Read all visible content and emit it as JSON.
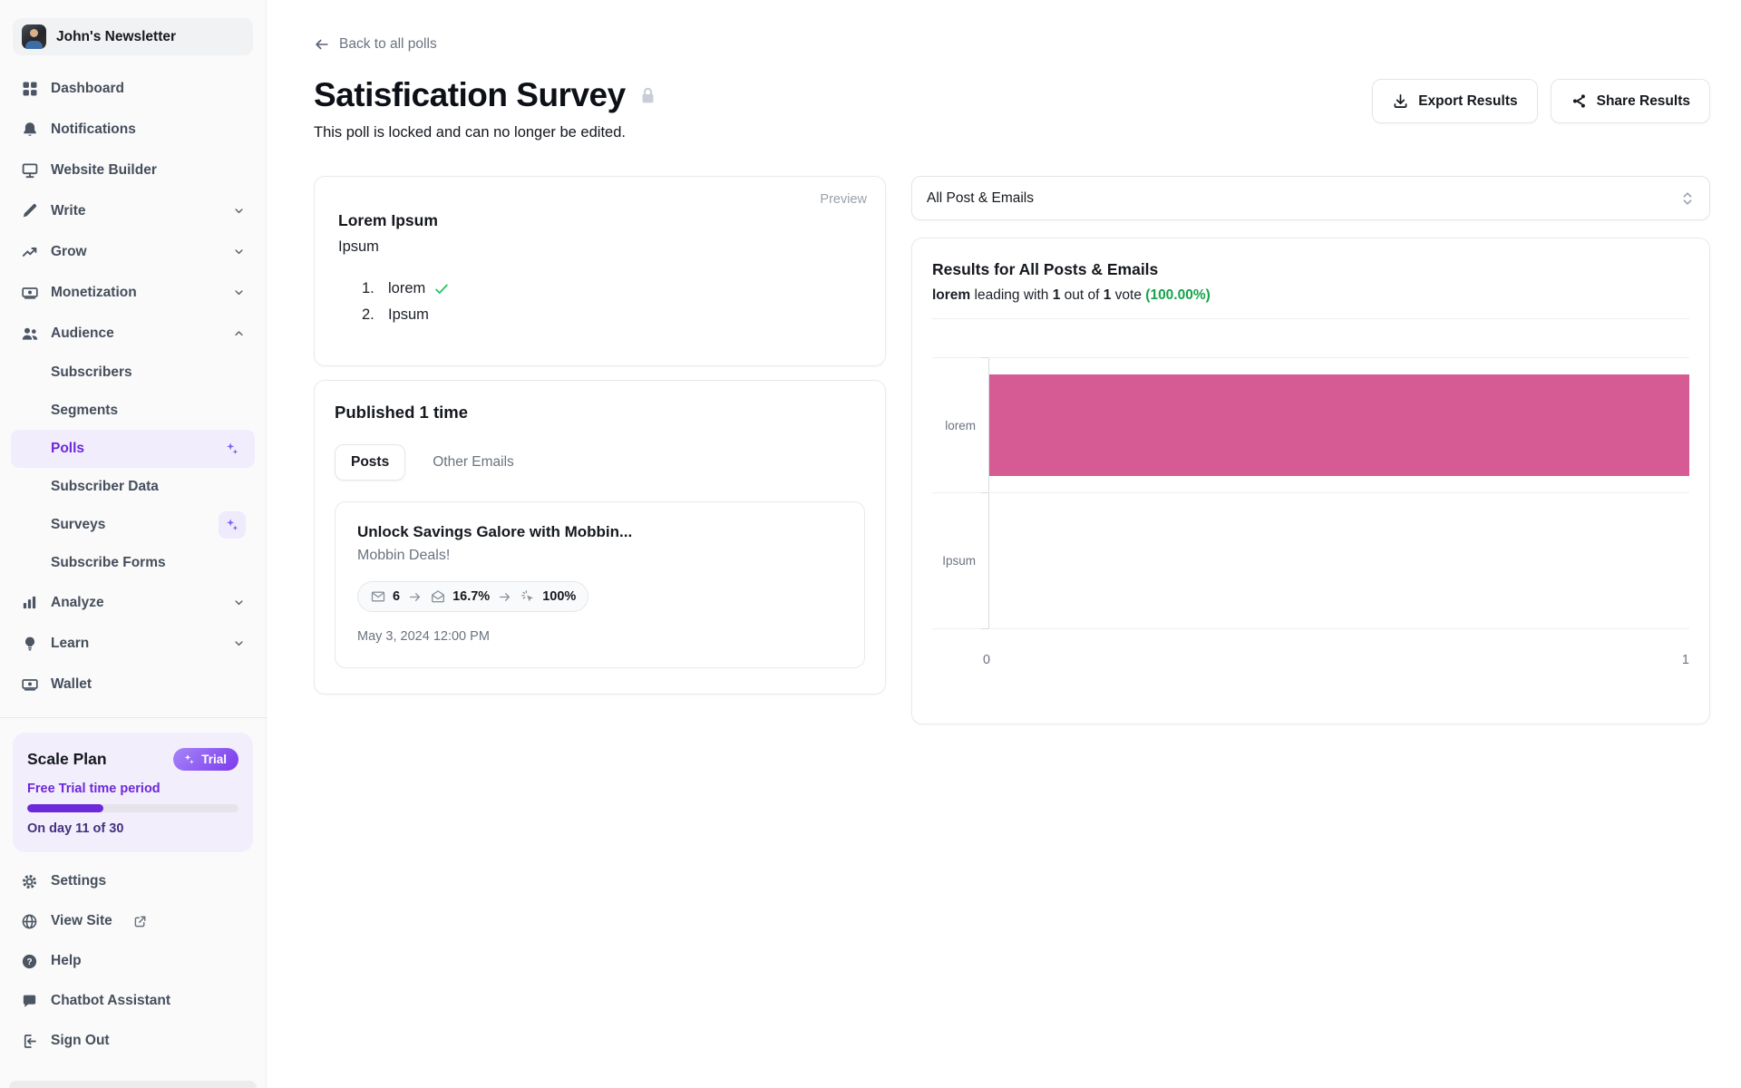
{
  "workspace": {
    "name": "John's Newsletter"
  },
  "sidebar": {
    "nav": [
      {
        "label": "Dashboard"
      },
      {
        "label": "Notifications"
      },
      {
        "label": "Website Builder"
      },
      {
        "label": "Write"
      },
      {
        "label": "Grow"
      },
      {
        "label": "Monetization"
      },
      {
        "label": "Audience"
      }
    ],
    "audience_children": [
      {
        "label": "Subscribers"
      },
      {
        "label": "Segments"
      },
      {
        "label": "Polls"
      },
      {
        "label": "Subscriber Data"
      },
      {
        "label": "Surveys"
      },
      {
        "label": "Subscribe Forms"
      }
    ],
    "nav_lower": [
      {
        "label": "Analyze"
      },
      {
        "label": "Learn"
      },
      {
        "label": "Wallet"
      }
    ],
    "plan": {
      "title": "Scale Plan",
      "badge": "Trial",
      "subtitle": "Free Trial time period",
      "progress_pct": 36,
      "status": "On day 11 of 30"
    },
    "footer": [
      {
        "label": "Settings"
      },
      {
        "label": "View Site"
      },
      {
        "label": "Help"
      },
      {
        "label": "Chatbot Assistant"
      },
      {
        "label": "Sign Out"
      }
    ]
  },
  "header": {
    "back_label": "Back to all polls",
    "title": "Satisfication Survey",
    "subtitle": "This poll is locked and can no longer be edited.",
    "export_label": "Export Results",
    "share_label": "Share Results"
  },
  "preview_card": {
    "tag": "Preview",
    "question": "Lorem Ipsum",
    "description": "Ipsum",
    "options": [
      {
        "number": "1.",
        "label": "lorem",
        "checked": true
      },
      {
        "number": "2.",
        "label": "Ipsum",
        "checked": false
      }
    ]
  },
  "published_card": {
    "title": "Published 1 time",
    "tabs": {
      "posts": "Posts",
      "other_emails": "Other Emails"
    },
    "active_tab": "Posts",
    "post": {
      "title": "Unlock Savings Galore with Mobbin...",
      "subtitle": "Mobbin Deals!",
      "stats": {
        "recipients": "6",
        "open_rate": "16.7%",
        "click_rate": "100%"
      },
      "date": "May 3, 2024 12:00 PM"
    }
  },
  "results": {
    "filter_value": "All Post & Emails",
    "title": "Results for All Posts & Emails",
    "summary": {
      "leader": "lorem",
      "t1": " leading with ",
      "count": "1",
      "t2": " out of ",
      "total": "1",
      "t3": " vote ",
      "percent": "(100.00%)"
    },
    "chart_data": {
      "type": "bar",
      "orientation": "horizontal",
      "categories": [
        "lorem",
        "Ipsum"
      ],
      "values": [
        1,
        0
      ],
      "xlim": [
        0,
        1
      ],
      "x_ticks": [
        "0",
        "1"
      ],
      "bar_color": "#d65a94",
      "grid": "row-separators",
      "legend": "none"
    }
  },
  "colors": {
    "accent_purple": "#6d28d9",
    "sparkle_purple": "#7c5cf5",
    "bar_pink": "#d65a94",
    "success_green": "#16a34a",
    "check_green": "#22c55e",
    "muted_text": "#6b7280"
  }
}
